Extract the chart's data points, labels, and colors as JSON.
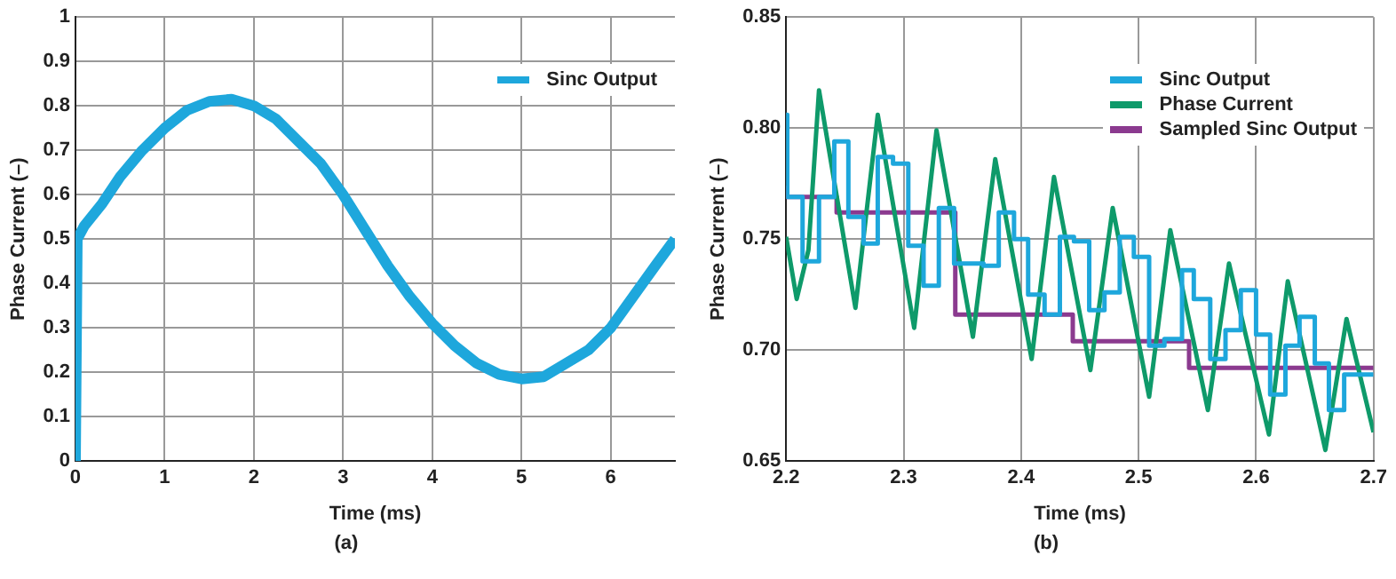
{
  "chart_data": [
    {
      "type": "line",
      "xlabel": "Time (ms)",
      "ylabel": "Phase Current (–)",
      "annotations": [
        "(a)"
      ],
      "xlim": [
        0,
        6.72
      ],
      "xticks": [
        0,
        1,
        2,
        3,
        4,
        5,
        6
      ],
      "ylim": [
        0,
        1
      ],
      "yticks": [
        0,
        0.1,
        0.2,
        0.3,
        0.4,
        0.5,
        0.6,
        0.7,
        0.8,
        0.9,
        1
      ],
      "grid": true,
      "legend": "top right",
      "x": [
        0,
        0.02,
        0.1,
        0.3,
        0.5,
        0.75,
        1,
        1.25,
        1.5,
        1.75,
        2,
        2.25,
        2.5,
        2.75,
        3,
        3.25,
        3.5,
        3.75,
        4,
        4.25,
        4.5,
        4.75,
        5,
        5.25,
        5.5,
        5.75,
        6,
        6.25,
        6.5,
        6.72
      ],
      "series": [
        {
          "name": "Sinc Output",
          "color": "#1ea7dc",
          "values": [
            0,
            0.5,
            0.53,
            0.58,
            0.64,
            0.7,
            0.75,
            0.79,
            0.81,
            0.815,
            0.8,
            0.77,
            0.72,
            0.67,
            0.6,
            0.52,
            0.44,
            0.37,
            0.31,
            0.26,
            0.22,
            0.195,
            0.185,
            0.19,
            0.22,
            0.25,
            0.3,
            0.37,
            0.44,
            0.5
          ]
        }
      ]
    },
    {
      "type": "line",
      "xlabel": "Time (ms)",
      "ylabel": "Phase Current (–)",
      "annotations": [
        "(b)"
      ],
      "xlim": [
        2.2,
        2.7
      ],
      "xticks": [
        2.2,
        2.3,
        2.4,
        2.5,
        2.6,
        2.7
      ],
      "ylim": [
        0.65,
        0.85
      ],
      "yticks": [
        {
          "value": 0.65,
          "label": "0.65"
        },
        {
          "value": 0.7,
          "label": "0.70"
        },
        {
          "value": 0.75,
          "label": "0.75"
        },
        {
          "value": 0.8,
          "label": "0.80"
        },
        {
          "value": 0.85,
          "label": "0.85"
        }
      ],
      "grid": true,
      "legend": "top right",
      "series": [
        {
          "name": "Sinc Output",
          "type": "step",
          "color": "#1ea7dc",
          "x": [
            2.2,
            2.201,
            2.214,
            2.228,
            2.241,
            2.253,
            2.266,
            2.278,
            2.291,
            2.304,
            2.317,
            2.33,
            2.343,
            2.368,
            2.381,
            2.394,
            2.406,
            2.42,
            2.433,
            2.445,
            2.458,
            2.471,
            2.484,
            2.496,
            2.509,
            2.522,
            2.537,
            2.547,
            2.561,
            2.574,
            2.587,
            2.6,
            2.612,
            2.625,
            2.637,
            2.65,
            2.662,
            2.675,
            2.688,
            2.7
          ],
          "values": [
            0.797,
            0.806,
            0.769,
            0.74,
            0.769,
            0.794,
            0.76,
            0.748,
            0.787,
            0.784,
            0.747,
            0.729,
            0.764,
            0.739,
            0.738,
            0.762,
            0.75,
            0.725,
            0.716,
            0.751,
            0.749,
            0.718,
            0.726,
            0.751,
            0.742,
            0.702,
            0.705,
            0.736,
            0.723,
            0.696,
            0.709,
            0.727,
            0.707,
            0.68,
            0.702,
            0.715,
            0.694,
            0.673,
            0.689,
            0.689
          ]
        },
        {
          "name": "Phase Current",
          "type": "line",
          "color": "#0e9a6a",
          "x": [
            2.2,
            2.209,
            2.219,
            2.228,
            2.259,
            2.278,
            2.309,
            2.328,
            2.359,
            2.378,
            2.409,
            2.428,
            2.459,
            2.478,
            2.509,
            2.527,
            2.559,
            2.577,
            2.611,
            2.627,
            2.659,
            2.677,
            2.7
          ],
          "values": [
            0.751,
            0.723,
            0.745,
            0.817,
            0.719,
            0.806,
            0.71,
            0.799,
            0.706,
            0.786,
            0.696,
            0.778,
            0.691,
            0.764,
            0.679,
            0.754,
            0.673,
            0.739,
            0.662,
            0.731,
            0.655,
            0.714,
            0.663
          ]
        },
        {
          "name": "Sampled Sinc Output",
          "type": "step",
          "color": "#8b3a8f",
          "x": [
            2.2,
            2.243,
            2.344,
            2.444,
            2.543,
            2.644,
            2.7
          ],
          "values": [
            0.774,
            0.769,
            0.762,
            0.716,
            0.704,
            0.692,
            0.692
          ]
        }
      ]
    }
  ]
}
